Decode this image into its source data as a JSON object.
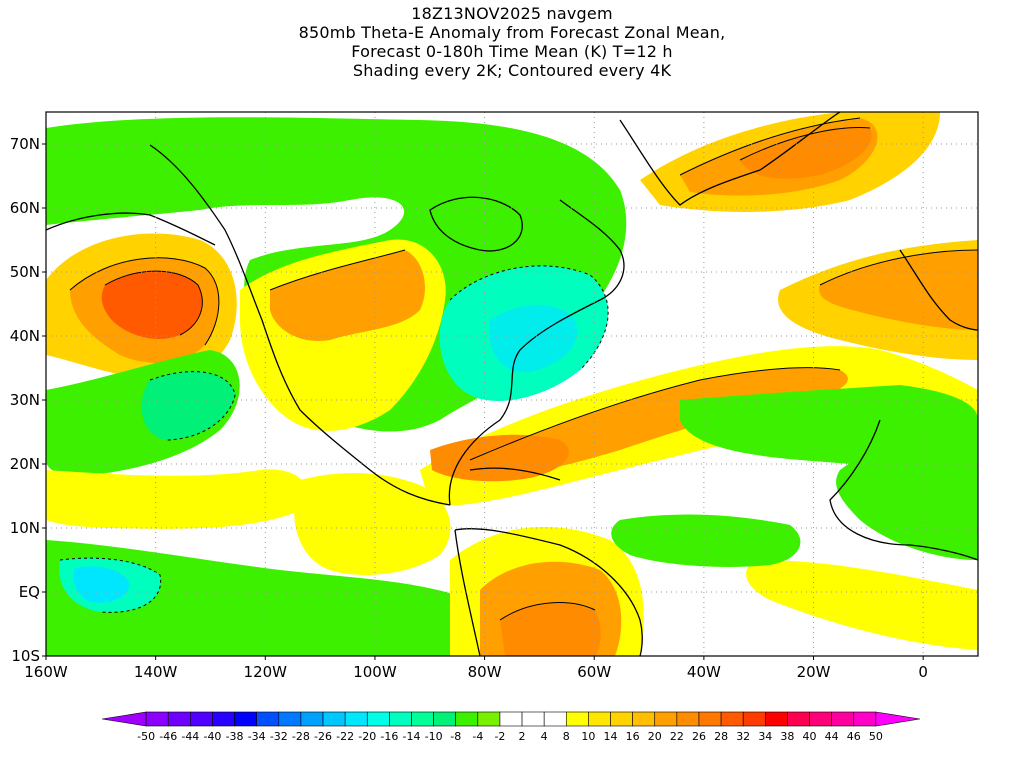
{
  "title": {
    "lines": [
      "18Z13NOV2025 navgem",
      "850mb Theta-E Anomaly from Forecast Zonal Mean,",
      "Forecast 0-180h Time Mean (K) T=12 h",
      "Shading every 2K; Contoured every 4K"
    ]
  },
  "map": {
    "projection": "lat-lon",
    "lon_range": [
      -160,
      10
    ],
    "lat_range": [
      -10,
      75
    ],
    "lat_ticks": [
      "70N",
      "60N",
      "50N",
      "40N",
      "30N",
      "20N",
      "10N",
      "EQ",
      "10S"
    ],
    "lon_ticks": [
      "160W",
      "140W",
      "120W",
      "100W",
      "80W",
      "60W",
      "40W",
      "20W",
      "0"
    ],
    "grid": "dotted"
  },
  "colorbar": {
    "labels": [
      "-50",
      "-46",
      "-44",
      "-40",
      "-38",
      "-34",
      "-32",
      "-28",
      "-26",
      "-22",
      "-20",
      "-16",
      "-14",
      "-10",
      "-8",
      "-4",
      "-2",
      "2",
      "4",
      "8",
      "10",
      "14",
      "16",
      "20",
      "22",
      "26",
      "28",
      "32",
      "34",
      "38",
      "40",
      "44",
      "46",
      "50"
    ],
    "colors": [
      "#a000ff",
      "#8c00ff",
      "#6e00ff",
      "#5000ff",
      "#2800ff",
      "#0000ff",
      "#0050ff",
      "#0078ff",
      "#00a0ff",
      "#00c8ff",
      "#00e6ff",
      "#00ffe6",
      "#00ffbe",
      "#00ff96",
      "#00f078",
      "#3cf000",
      "#78f000",
      "#ffffff",
      "#ffffff",
      "#ffffff",
      "#ffff00",
      "#ffe600",
      "#ffd200",
      "#ffbe00",
      "#ffa000",
      "#ff8c00",
      "#ff7800",
      "#ff5a00",
      "#ff3c00",
      "#ff0000",
      "#ff0050",
      "#ff0078",
      "#ff00a0",
      "#ff00c8",
      "#ff00ff"
    ]
  },
  "palette": {
    "green": "#3cf000",
    "lightgreen": "#00f078",
    "cyan": "#00ffbe",
    "aqua": "#00e6ff",
    "yellow": "#ffff00",
    "gold": "#ffd200",
    "orange": "#ffa000",
    "darkorange": "#ff8c00",
    "red": "#ff5a00"
  }
}
